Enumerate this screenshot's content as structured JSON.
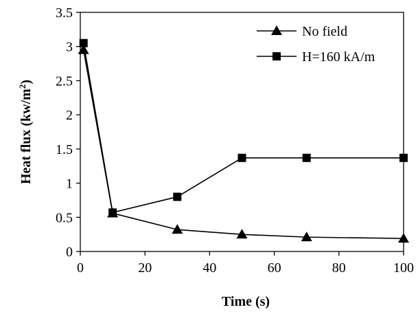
{
  "chart_data": {
    "type": "line",
    "xlabel": "Time (s)",
    "ylabel": "Heat flux (kw/m",
    "ylabel_sup": "2",
    "ylabel_close": ")",
    "xlim": [
      0,
      100
    ],
    "ylim": [
      0,
      3.5
    ],
    "x_ticks": [
      0,
      20,
      40,
      60,
      80,
      100
    ],
    "x_tick_labels": [
      "0",
      "20",
      "40",
      "60",
      "80",
      "100"
    ],
    "y_ticks": [
      0,
      0.5,
      1,
      1.5,
      2,
      2.5,
      3,
      3.5
    ],
    "y_tick_labels": [
      "0",
      "0.5",
      "1",
      "1.5",
      "2",
      "2.5",
      "3",
      "3.5"
    ],
    "grid": false,
    "legend_position": "top-right",
    "series": [
      {
        "name": "No field",
        "marker": "triangle",
        "color": "#000000",
        "x": [
          1,
          10,
          30,
          50,
          70,
          100
        ],
        "y": [
          2.95,
          0.56,
          0.32,
          0.25,
          0.21,
          0.19
        ]
      },
      {
        "name": "H=160 kA/m",
        "marker": "square",
        "color": "#000000",
        "x": [
          1,
          10,
          30,
          50,
          70,
          100
        ],
        "y": [
          3.05,
          0.57,
          0.8,
          1.37,
          1.37,
          1.37
        ]
      }
    ]
  }
}
